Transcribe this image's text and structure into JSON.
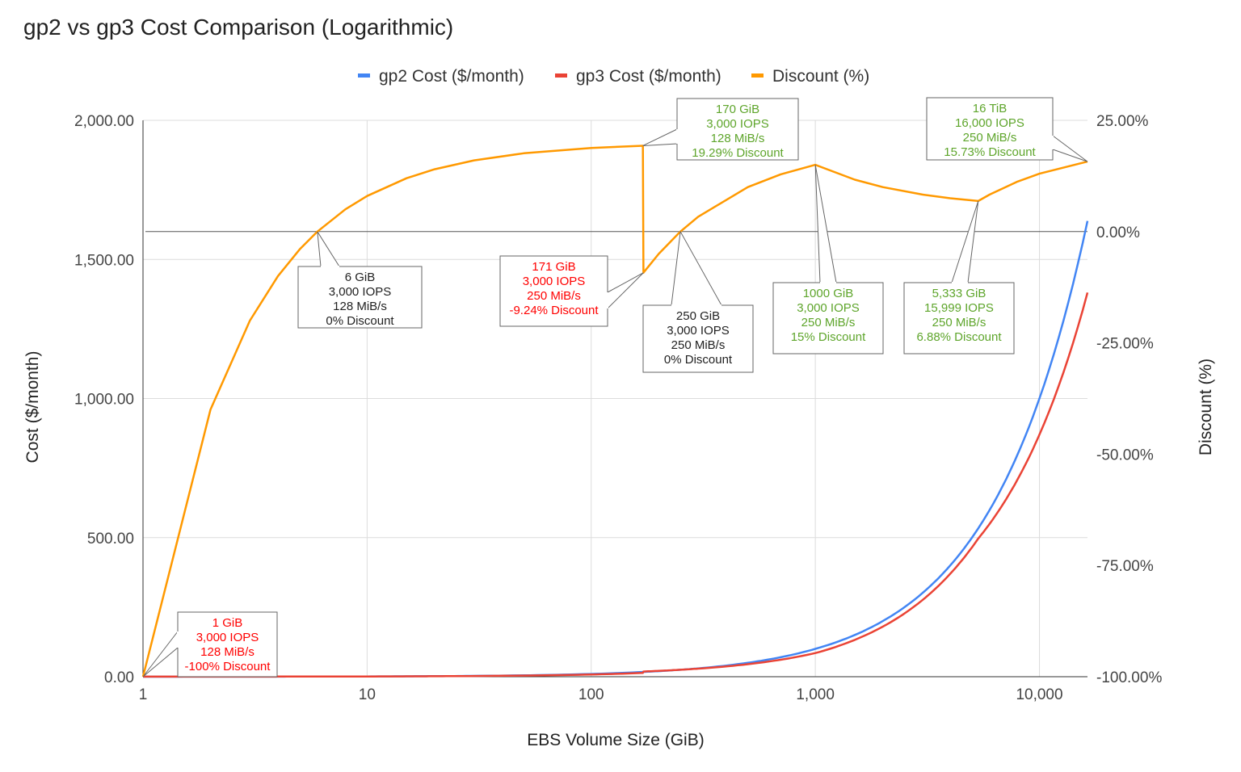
{
  "chart_data": {
    "type": "line",
    "title": "gp2 vs gp3 Cost Comparison (Logarithmic)",
    "xlabel": "EBS Volume Size (GiB)",
    "ylabel_left": "Cost ($/month)",
    "ylabel_right": "Discount (%)",
    "x_scale": "log",
    "xlim": [
      1,
      16384
    ],
    "ylim_left": [
      0,
      2000
    ],
    "ylim_right": [
      -100,
      25
    ],
    "x_ticks": [
      1,
      10,
      100,
      1000,
      10000
    ],
    "x_tick_labels": [
      "1",
      "10",
      "100",
      "1,000",
      "10,000"
    ],
    "y_left_ticks": [
      0,
      500,
      1000,
      1500,
      2000
    ],
    "y_left_tick_labels": [
      "0.00",
      "500.00",
      "1,000.00",
      "1,500.00",
      "2,000.00"
    ],
    "y_right_ticks": [
      -100,
      -75,
      -50,
      -25,
      0,
      25
    ],
    "y_right_tick_labels": [
      "-100.00%",
      "-75.00%",
      "-50.00%",
      "-25.00%",
      "0.00%",
      "25.00%"
    ],
    "grid": true,
    "legend_position": "top",
    "x": [
      1,
      2,
      3,
      4,
      5,
      6,
      8,
      10,
      15,
      20,
      30,
      50,
      100,
      170,
      171,
      200,
      250,
      300,
      500,
      700,
      1000,
      1500,
      2000,
      3000,
      4000,
      5333,
      6000,
      8000,
      10000,
      16384
    ],
    "series": [
      {
        "name": "gp2 Cost ($/month)",
        "axis": "left",
        "color": "#4285f4",
        "values": [
          0.1,
          0.2,
          0.3,
          0.4,
          0.5,
          0.6,
          0.8,
          1.0,
          1.5,
          2,
          3,
          5,
          10,
          17,
          17.1,
          20,
          25,
          30,
          50,
          70,
          100,
          150,
          200,
          300,
          400,
          533.3,
          600,
          800,
          1000,
          1638.4
        ]
      },
      {
        "name": "gp3 Cost ($/month)",
        "axis": "left",
        "color": "#ea4335",
        "values": [
          0.2,
          0.28,
          0.36,
          0.44,
          0.52,
          0.6,
          0.76,
          0.92,
          1.32,
          1.72,
          2.52,
          4.12,
          8.12,
          13.72,
          18.68,
          21,
          25,
          29,
          45,
          61,
          85,
          132.5,
          180,
          275,
          370,
          496.64,
          550,
          710,
          870,
          1380.72
        ]
      },
      {
        "name": "Discount (%)",
        "axis": "right",
        "color": "#ff9900",
        "values": [
          -100,
          -40,
          -20,
          -10,
          -4,
          0,
          5,
          8,
          12,
          14,
          16,
          17.6,
          18.8,
          19.29,
          -9.24,
          -5,
          0,
          3.33,
          10,
          12.86,
          15,
          11.67,
          10,
          8.33,
          7.5,
          6.88,
          8.33,
          11.25,
          13,
          15.73
        ]
      }
    ],
    "annotations": [
      {
        "x": 6,
        "y": 0,
        "color": "#222222",
        "lines": [
          "6 GiB",
          "3,000 IOPS",
          "128 MiB/s",
          "0% Discount"
        ]
      },
      {
        "x": 171,
        "y": -9.24,
        "color": "#ff0000",
        "lines": [
          "171 GiB",
          "3,000 IOPS",
          "250 MiB/s",
          "-9.24% Discount"
        ]
      },
      {
        "x": 170,
        "y": 19.29,
        "color": "#5ea52b",
        "lines": [
          "170 GiB",
          "3,000 IOPS",
          "128 MiB/s",
          "19.29% Discount"
        ]
      },
      {
        "x": 250,
        "y": 0,
        "color": "#222222",
        "lines": [
          "250 GiB",
          "3,000 IOPS",
          "250 MiB/s",
          "0% Discount"
        ]
      },
      {
        "x": 1000,
        "y": 15,
        "color": "#5ea52b",
        "lines": [
          "1000 GiB",
          "3,000 IOPS",
          "250 MiB/s",
          "15% Discount"
        ]
      },
      {
        "x": 5333,
        "y": 6.88,
        "color": "#5ea52b",
        "lines": [
          "5,333 GiB",
          "15,999 IOPS",
          "250 MiB/s",
          "6.88% Discount"
        ]
      },
      {
        "x": 16384,
        "y": 15.73,
        "color": "#5ea52b",
        "lines": [
          "16 TiB",
          "16,000 IOPS",
          "250 MiB/s",
          "15.73% Discount"
        ]
      },
      {
        "x": 1,
        "y": -100,
        "color": "#ff0000",
        "lines": [
          "1 GiB",
          "3,000 IOPS",
          "128 MiB/s",
          "-100% Discount"
        ]
      }
    ]
  }
}
